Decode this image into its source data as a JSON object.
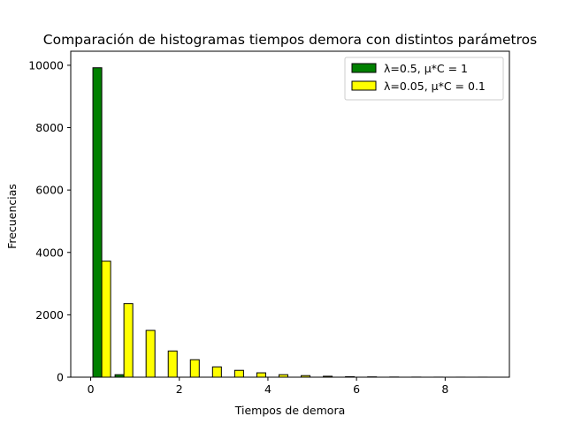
{
  "chart_data": {
    "type": "bar",
    "title": "Comparación de histogramas tiempos demora con distintos parámetros",
    "xlabel": "Tiempos de demora",
    "ylabel": "Frecuencias",
    "xlim": [
      -0.45,
      9.45
    ],
    "ylim": [
      0,
      10450
    ],
    "x_ticks": [
      0,
      2,
      4,
      6,
      8
    ],
    "y_ticks": [
      0,
      2000,
      4000,
      6000,
      8000,
      10000
    ],
    "grid": false,
    "legend_position": "top-right",
    "bin_edges": [
      0,
      0.5,
      1,
      1.5,
      2,
      2.5,
      3,
      3.5,
      4,
      4.5,
      5,
      5.5,
      6,
      6.5,
      7,
      7.5,
      8,
      8.5,
      9
    ],
    "series": [
      {
        "name": "λ=0.5, μ*C = 1",
        "color": "#008000",
        "values": [
          9920,
          80,
          0,
          0,
          0,
          0,
          0,
          0,
          0,
          0,
          0,
          0,
          0,
          0,
          0,
          0,
          0,
          0
        ]
      },
      {
        "name": "λ=0.05, μ*C = 0.1",
        "color": "#ffff00",
        "values": [
          3720,
          2360,
          1500,
          840,
          560,
          330,
          220,
          140,
          80,
          50,
          30,
          15,
          10,
          5,
          3,
          2,
          1,
          1
        ]
      }
    ]
  }
}
